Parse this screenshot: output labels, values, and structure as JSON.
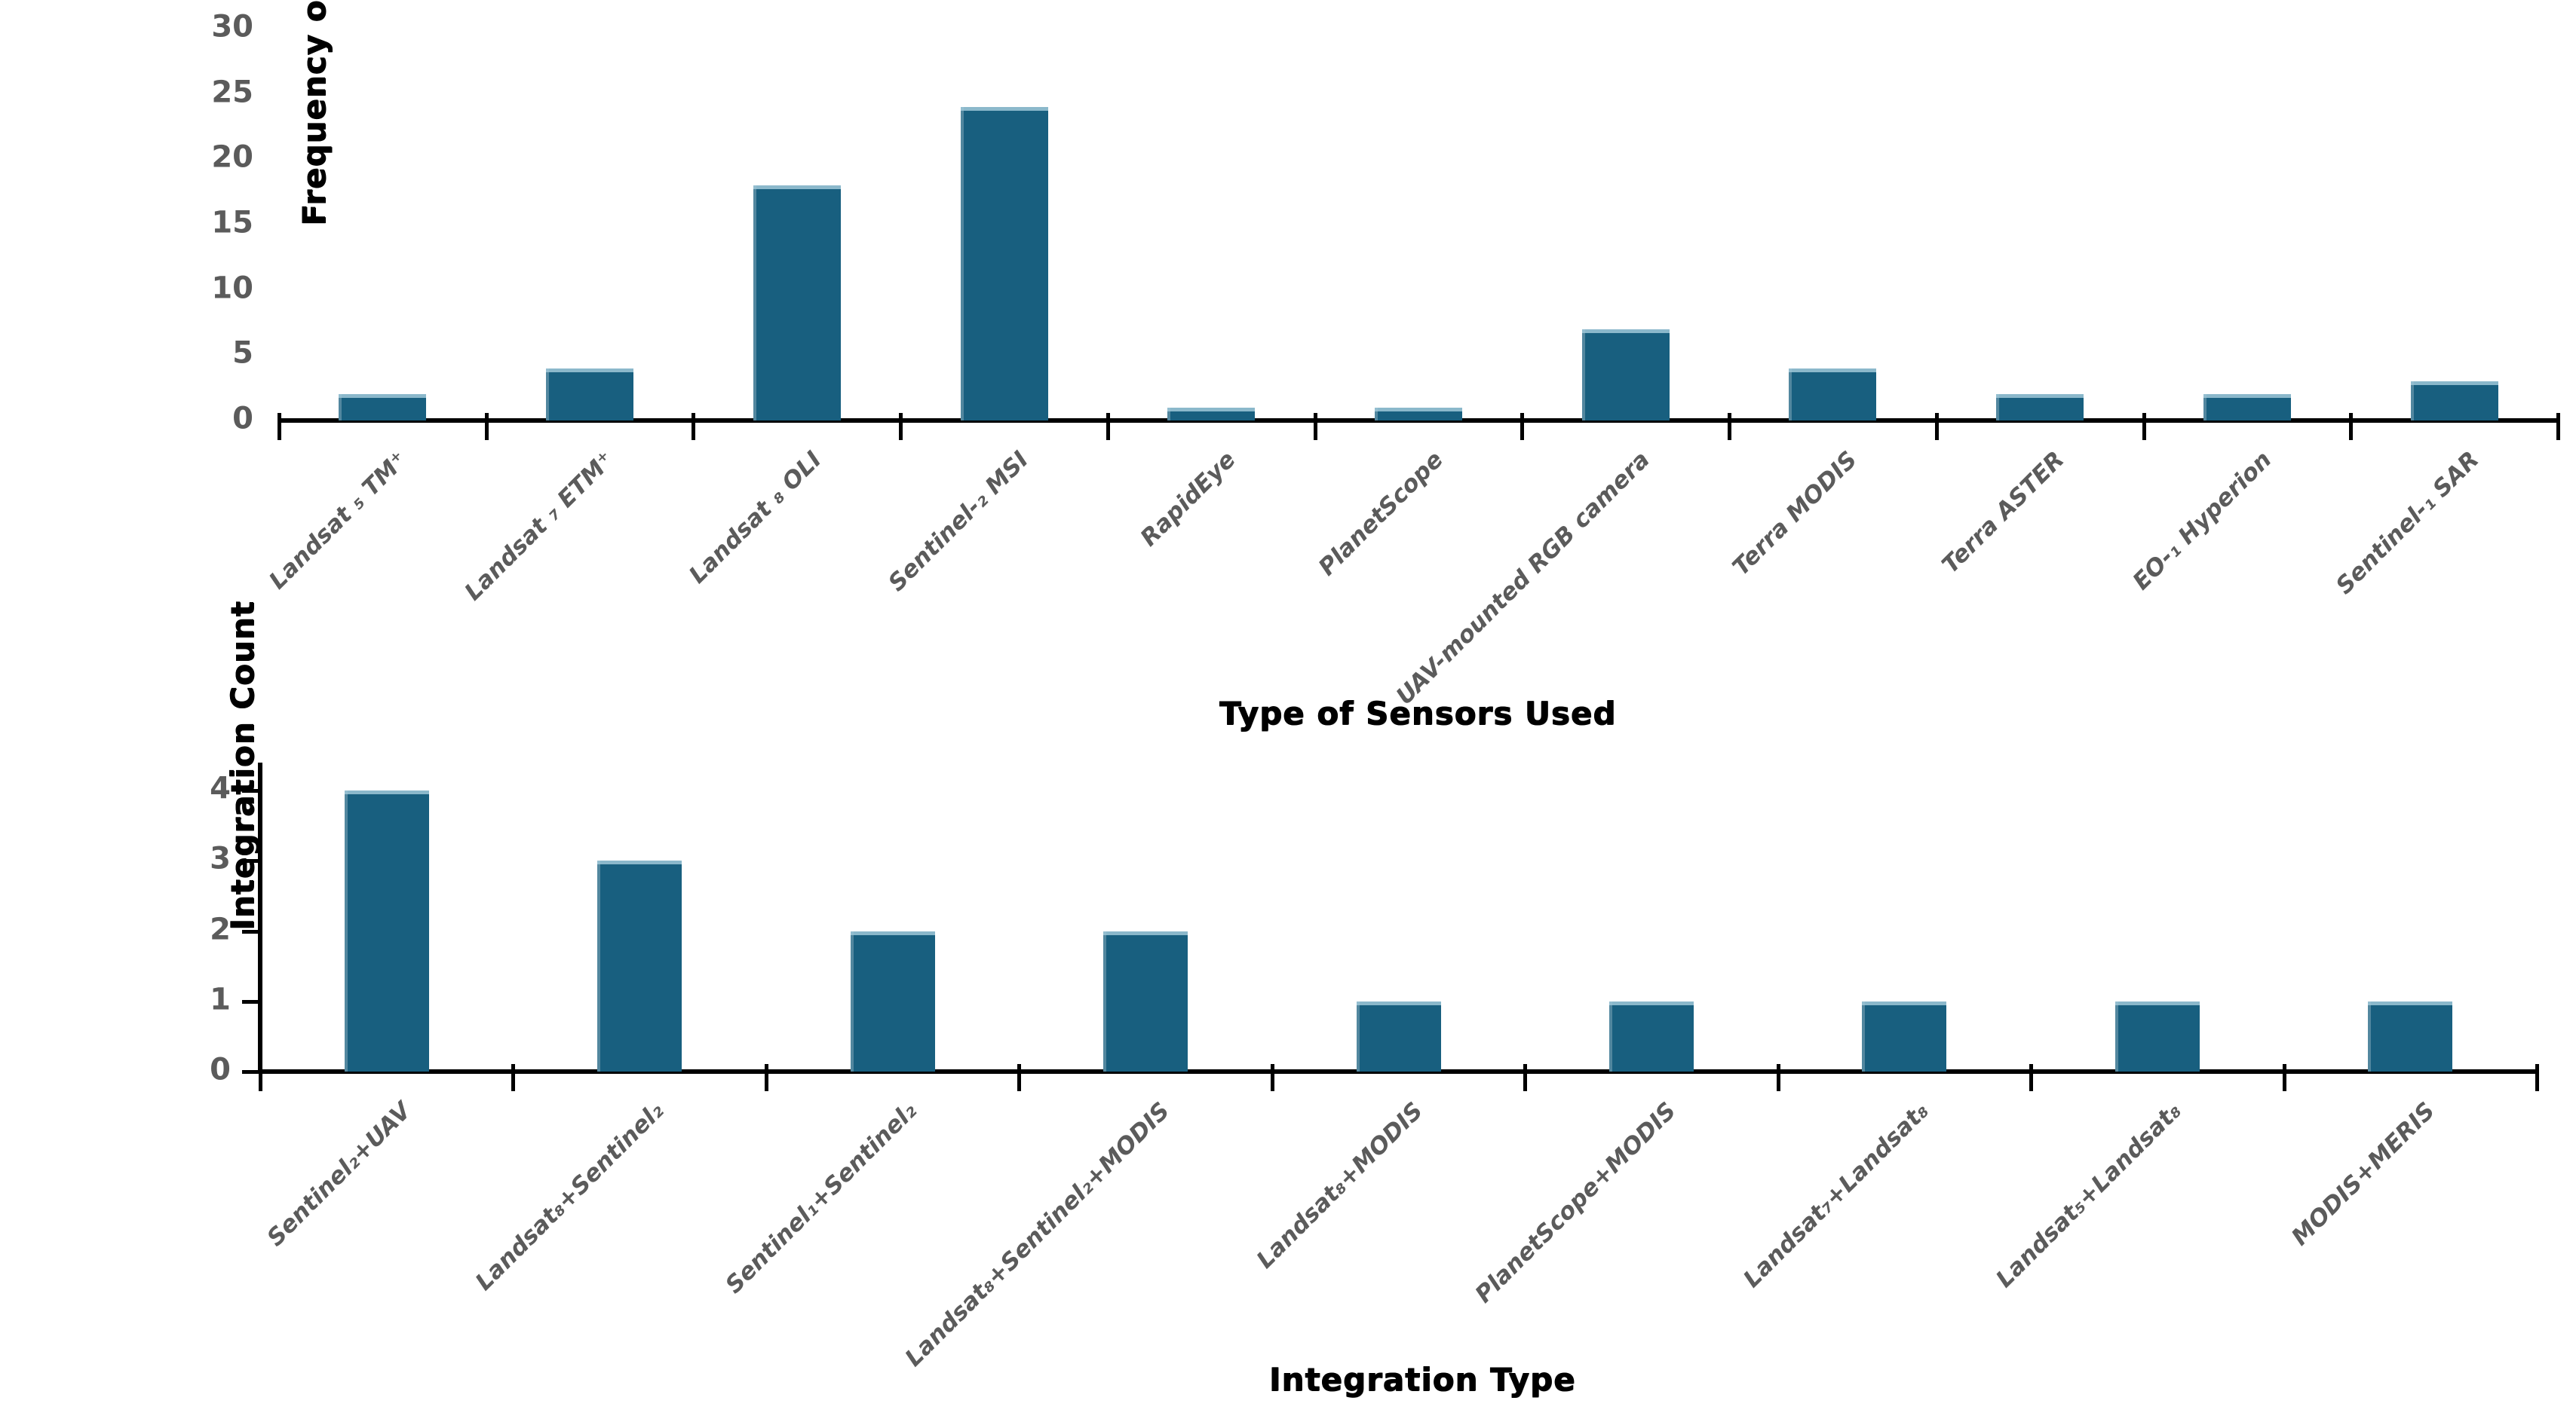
{
  "figure": {
    "background": "#ffffff",
    "bar_color": "#185f7f",
    "bar_top_edge_color": "#a0c8d8",
    "axis_color": "#000000",
    "tick_label_color": "#5b5b5b",
    "category_label_color": "#5b5b5b",
    "axis_title_color": "#000000"
  },
  "chart_data": [
    {
      "type": "bar",
      "title": "",
      "xlabel": "Type of Sensors Used",
      "ylabel": "Frequency of sensors Applied",
      "categories": [
        "Landsat ₅ TM⁺",
        "Landsat ₇ ETM⁺",
        "Landsat ₈ OLI",
        "Sentinel-₂ MSI",
        "RapidEye",
        "PlanetScope",
        "UAV-mounted RGB camera",
        "Terra MODIS",
        "Terra ASTER",
        "EO-₁ Hyperion",
        "Sentinel-₁ SAR"
      ],
      "values": [
        2,
        4,
        18,
        24,
        1,
        1,
        7,
        4,
        2,
        2,
        3
      ],
      "yticks": [
        0,
        5,
        10,
        15,
        20,
        25,
        30
      ],
      "ylim": [
        0,
        30
      ],
      "grid": false,
      "legend_position": "none",
      "bar_orientation": "vertical"
    },
    {
      "type": "bar",
      "title": "",
      "xlabel": "Integration Type",
      "ylabel": "Integration Count",
      "categories": [
        "Sentinel₂+UAV",
        "Landsat₈+Sentinel₂",
        "Sentinel₁+Sentinel₂",
        "Landsat₈+Sentinel₂+MODIS",
        "Landsat₈+MODIS",
        "PlanetScope+MODIS",
        "Landsat₇+Landsat₈",
        "Landsat₅+Landsat₈",
        "MODIS+MERIS"
      ],
      "values": [
        4,
        3,
        2,
        2,
        1,
        1,
        1,
        1,
        1
      ],
      "yticks": [
        0,
        1,
        2,
        3,
        4
      ],
      "ylim": [
        0,
        4
      ],
      "grid": false,
      "legend_position": "none",
      "bar_orientation": "vertical"
    }
  ]
}
